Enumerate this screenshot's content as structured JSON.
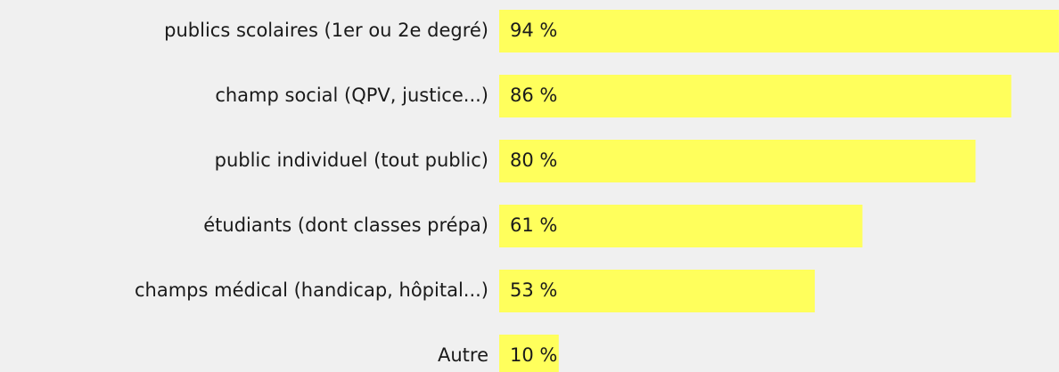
{
  "chart_data": {
    "type": "bar",
    "orientation": "horizontal",
    "categories": [
      "publics scolaires (1er ou 2e degré)",
      "champ social (QPV, justice...)",
      "public individuel (tout public)",
      "étudiants (dont classes prépa)",
      "champs médical (handicap, hôpital...)",
      "Autre"
    ],
    "values": [
      94,
      86,
      80,
      61,
      53,
      10
    ],
    "value_labels": [
      "94 %",
      "86 %",
      "80 %",
      "61 %",
      "53 %",
      "10 %"
    ],
    "color": "#ffff5c"
  }
}
